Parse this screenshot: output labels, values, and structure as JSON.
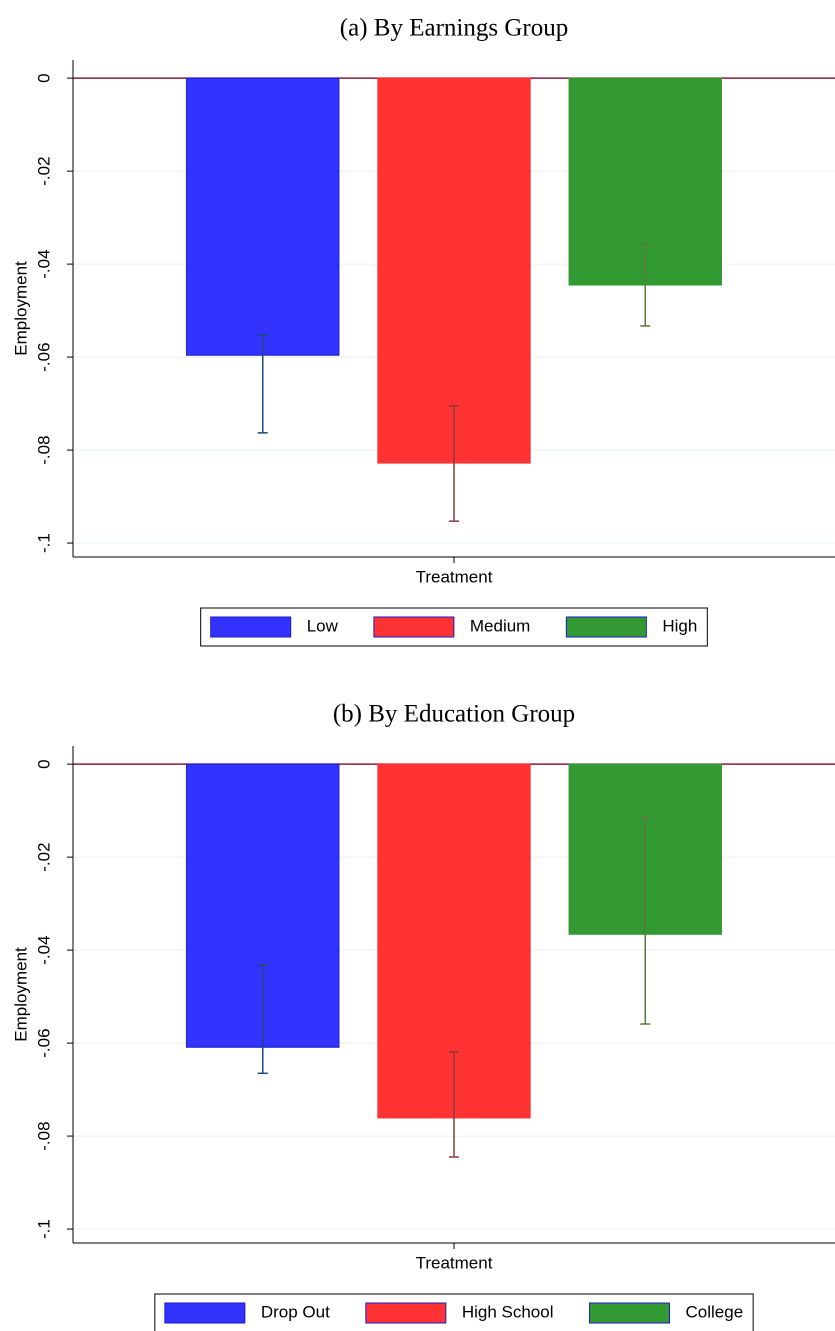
{
  "chart_data": [
    {
      "type": "bar",
      "title": "(a) By Earnings Group",
      "ylabel": "Employment",
      "categories": [
        "Treatment"
      ],
      "ylim": [
        -0.103,
        0.0039
      ],
      "grid": true,
      "zero_line_color": "#8c1c3c",
      "yticks": [
        {
          "value": 0,
          "label": "0"
        },
        {
          "value": -0.02,
          "label": "-.02"
        },
        {
          "value": -0.04,
          "label": "-.04"
        },
        {
          "value": -0.06,
          "label": "-.06"
        },
        {
          "value": -0.08,
          "label": "-.08"
        },
        {
          "value": -0.1,
          "label": "-.1"
        }
      ],
      "series": [
        {
          "name": "Low",
          "color": "#3333ff",
          "error_color": "#1c4a7c",
          "values": [
            -0.0596
          ],
          "error_low": [
            -0.0763
          ],
          "error_high": [
            -0.0553
          ]
        },
        {
          "name": "Medium",
          "color": "#ff3333",
          "error_color": "#8c3a3a",
          "values": [
            -0.0828
          ],
          "error_low": [
            -0.0953
          ],
          "error_high": [
            -0.0705
          ]
        },
        {
          "name": "High",
          "color": "#339933",
          "error_color": "#5c7a3a",
          "values": [
            -0.0445
          ],
          "error_low": [
            -0.0533
          ],
          "error_high": [
            -0.0357
          ]
        }
      ]
    },
    {
      "type": "bar",
      "title": "(b) By Education Group",
      "ylabel": "Employment",
      "categories": [
        "Treatment"
      ],
      "ylim": [
        -0.103,
        0.0039
      ],
      "grid": true,
      "zero_line_color": "#8c1c3c",
      "yticks": [
        {
          "value": 0,
          "label": "0"
        },
        {
          "value": -0.02,
          "label": "-.02"
        },
        {
          "value": -0.04,
          "label": "-.04"
        },
        {
          "value": -0.06,
          "label": "-.06"
        },
        {
          "value": -0.08,
          "label": "-.08"
        },
        {
          "value": -0.1,
          "label": "-.1"
        }
      ],
      "series": [
        {
          "name": "Drop Out",
          "color": "#3333ff",
          "error_color": "#1c4a7c",
          "values": [
            -0.0609
          ],
          "error_low": [
            -0.0665
          ],
          "error_high": [
            -0.0432
          ]
        },
        {
          "name": "High School",
          "color": "#ff3333",
          "error_color": "#8c3a3a",
          "values": [
            -0.0761
          ],
          "error_low": [
            -0.0845
          ],
          "error_high": [
            -0.0619
          ]
        },
        {
          "name": "College",
          "color": "#339933",
          "error_color": "#5c7a3a",
          "values": [
            -0.0366
          ],
          "error_low": [
            -0.0559
          ],
          "error_high": [
            -0.0114
          ]
        }
      ]
    }
  ]
}
